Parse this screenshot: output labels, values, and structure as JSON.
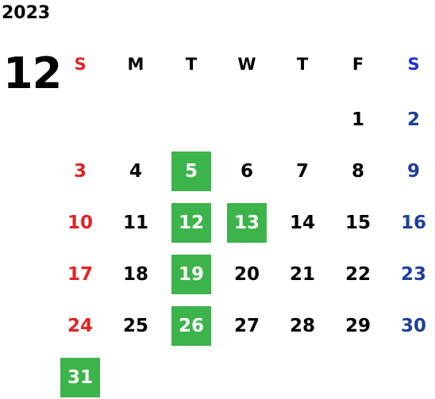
{
  "year": "2023",
  "month": "12",
  "weekdays": [
    "S",
    "M",
    "T",
    "W",
    "T",
    "F",
    "S"
  ],
  "colors": {
    "sunday": "#e02424",
    "saturday": "#1e3f9a",
    "saturday_header": "#1e2fd8",
    "highlight": "#3cb44b"
  },
  "weeks": [
    [
      "",
      "",
      "",
      "",
      "",
      "1",
      "2"
    ],
    [
      "3",
      "4",
      "5",
      "6",
      "7",
      "8",
      "9"
    ],
    [
      "10",
      "11",
      "12",
      "13",
      "14",
      "15",
      "16"
    ],
    [
      "17",
      "18",
      "19",
      "20",
      "21",
      "22",
      "23"
    ],
    [
      "24",
      "25",
      "26",
      "27",
      "28",
      "29",
      "30"
    ],
    [
      "31",
      "",
      "",
      "",
      "",
      "",
      ""
    ]
  ],
  "highlighted_days": [
    "5",
    "12",
    "13",
    "19",
    "26",
    "31"
  ]
}
